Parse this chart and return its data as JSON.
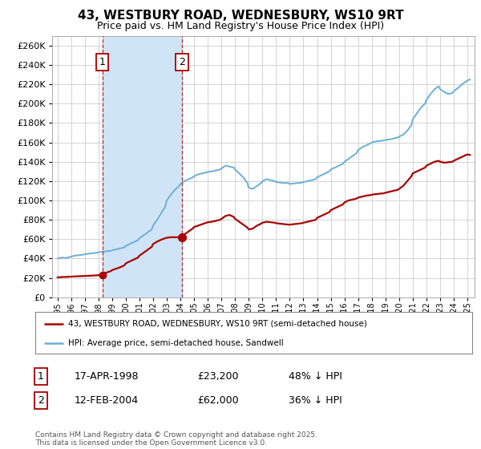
{
  "title": "43, WESTBURY ROAD, WEDNESBURY, WS10 9RT",
  "subtitle": "Price paid vs. HM Land Registry's House Price Index (HPI)",
  "ylabel_ticks": [
    0,
    20000,
    40000,
    60000,
    80000,
    100000,
    120000,
    140000,
    160000,
    180000,
    200000,
    220000,
    240000,
    260000
  ],
  "ylim": [
    0,
    270000
  ],
  "xlim_start": 1994.6,
  "xlim_end": 2025.5,
  "purchase1_date": 1998.29,
  "purchase1_price": 23200,
  "purchase2_date": 2004.11,
  "purchase2_price": 62000,
  "table_row1": [
    "1",
    "17-APR-1998",
    "£23,200",
    "48% ↓ HPI"
  ],
  "table_row2": [
    "2",
    "12-FEB-2004",
    "£62,000",
    "36% ↓ HPI"
  ],
  "legend_line1": "43, WESTBURY ROAD, WEDNESBURY, WS10 9RT (semi-detached house)",
  "legend_line2": "HPI: Average price, semi-detached house, Sandwell",
  "copyright": "Contains HM Land Registry data © Crown copyright and database right 2025.\nThis data is licensed under the Open Government Licence v3.0.",
  "red_color": "#aa0000",
  "blue_color": "#6baed6",
  "shade_color": "#d0e4f7",
  "background_color": "#ffffff",
  "grid_color": "#cccccc",
  "hpi_data": [
    [
      1995.0,
      40000
    ],
    [
      1995.3,
      41000
    ],
    [
      1995.6,
      40500
    ],
    [
      1995.9,
      41500
    ],
    [
      1996.0,
      42000
    ],
    [
      1996.3,
      43000
    ],
    [
      1996.6,
      43500
    ],
    [
      1996.9,
      44000
    ],
    [
      1997.0,
      44500
    ],
    [
      1997.3,
      45000
    ],
    [
      1997.6,
      45500
    ],
    [
      1997.9,
      46000
    ],
    [
      1998.0,
      46500
    ],
    [
      1998.3,
      47000
    ],
    [
      1998.6,
      47500
    ],
    [
      1998.9,
      48000
    ],
    [
      1999.0,
      48500
    ],
    [
      1999.3,
      49500
    ],
    [
      1999.6,
      50500
    ],
    [
      1999.9,
      51500
    ],
    [
      2000.0,
      53000
    ],
    [
      2000.3,
      55000
    ],
    [
      2000.6,
      57000
    ],
    [
      2000.9,
      59000
    ],
    [
      2001.0,
      61000
    ],
    [
      2001.3,
      64000
    ],
    [
      2001.6,
      67000
    ],
    [
      2001.9,
      70000
    ],
    [
      2002.0,
      74000
    ],
    [
      2002.3,
      80000
    ],
    [
      2002.6,
      87000
    ],
    [
      2002.9,
      94000
    ],
    [
      2003.0,
      100000
    ],
    [
      2003.3,
      106000
    ],
    [
      2003.6,
      111000
    ],
    [
      2003.9,
      115000
    ],
    [
      2004.0,
      117000
    ],
    [
      2004.3,
      120000
    ],
    [
      2004.6,
      122000
    ],
    [
      2004.9,
      124000
    ],
    [
      2005.0,
      125000
    ],
    [
      2005.3,
      127000
    ],
    [
      2005.6,
      128000
    ],
    [
      2005.9,
      129000
    ],
    [
      2006.0,
      129500
    ],
    [
      2006.3,
      130000
    ],
    [
      2006.6,
      131000
    ],
    [
      2006.9,
      132000
    ],
    [
      2007.0,
      133000
    ],
    [
      2007.3,
      136000
    ],
    [
      2007.6,
      135000
    ],
    [
      2007.9,
      134000
    ],
    [
      2008.0,
      132000
    ],
    [
      2008.3,
      128000
    ],
    [
      2008.6,
      124000
    ],
    [
      2008.9,
      118000
    ],
    [
      2009.0,
      113000
    ],
    [
      2009.3,
      112000
    ],
    [
      2009.6,
      115000
    ],
    [
      2009.9,
      118000
    ],
    [
      2010.0,
      120000
    ],
    [
      2010.3,
      122000
    ],
    [
      2010.6,
      121000
    ],
    [
      2010.9,
      120000
    ],
    [
      2011.0,
      119000
    ],
    [
      2011.3,
      118500
    ],
    [
      2011.6,
      118000
    ],
    [
      2011.9,
      118000
    ],
    [
      2012.0,
      117000
    ],
    [
      2012.3,
      117500
    ],
    [
      2012.6,
      118000
    ],
    [
      2012.9,
      118500
    ],
    [
      2013.0,
      119000
    ],
    [
      2013.3,
      120000
    ],
    [
      2013.6,
      121000
    ],
    [
      2013.9,
      122000
    ],
    [
      2014.0,
      124000
    ],
    [
      2014.3,
      126000
    ],
    [
      2014.6,
      128000
    ],
    [
      2014.9,
      130000
    ],
    [
      2015.0,
      132000
    ],
    [
      2015.3,
      134000
    ],
    [
      2015.6,
      136000
    ],
    [
      2015.9,
      138000
    ],
    [
      2016.0,
      140000
    ],
    [
      2016.3,
      143000
    ],
    [
      2016.6,
      146000
    ],
    [
      2016.9,
      149000
    ],
    [
      2017.0,
      152000
    ],
    [
      2017.3,
      155000
    ],
    [
      2017.6,
      157000
    ],
    [
      2017.9,
      159000
    ],
    [
      2018.0,
      160000
    ],
    [
      2018.3,
      161000
    ],
    [
      2018.6,
      161500
    ],
    [
      2018.9,
      162000
    ],
    [
      2019.0,
      162500
    ],
    [
      2019.3,
      163000
    ],
    [
      2019.6,
      164000
    ],
    [
      2019.9,
      165000
    ],
    [
      2020.0,
      166000
    ],
    [
      2020.3,
      168000
    ],
    [
      2020.6,
      172000
    ],
    [
      2020.9,
      178000
    ],
    [
      2021.0,
      184000
    ],
    [
      2021.3,
      190000
    ],
    [
      2021.6,
      196000
    ],
    [
      2021.9,
      200000
    ],
    [
      2022.0,
      204000
    ],
    [
      2022.3,
      210000
    ],
    [
      2022.6,
      215000
    ],
    [
      2022.9,
      218000
    ],
    [
      2023.0,
      215000
    ],
    [
      2023.3,
      212000
    ],
    [
      2023.6,
      210000
    ],
    [
      2023.9,
      211000
    ],
    [
      2024.0,
      213000
    ],
    [
      2024.3,
      216000
    ],
    [
      2024.6,
      220000
    ],
    [
      2024.9,
      223000
    ],
    [
      2025.0,
      224000
    ],
    [
      2025.2,
      225000
    ]
  ],
  "red_data": [
    [
      1995.0,
      20500
    ],
    [
      1995.3,
      20800
    ],
    [
      1995.6,
      21000
    ],
    [
      1995.9,
      21200
    ],
    [
      1996.0,
      21300
    ],
    [
      1996.3,
      21500
    ],
    [
      1996.6,
      21700
    ],
    [
      1996.9,
      21900
    ],
    [
      1997.0,
      22000
    ],
    [
      1997.3,
      22200
    ],
    [
      1997.6,
      22400
    ],
    [
      1997.9,
      22600
    ],
    [
      1998.0,
      22800
    ],
    [
      1998.29,
      23200
    ],
    [
      1998.5,
      25000
    ],
    [
      1998.9,
      27000
    ],
    [
      1999.0,
      28000
    ],
    [
      1999.3,
      29500
    ],
    [
      1999.6,
      31000
    ],
    [
      1999.9,
      33000
    ],
    [
      2000.0,
      35000
    ],
    [
      2000.3,
      37000
    ],
    [
      2000.6,
      39000
    ],
    [
      2000.9,
      41000
    ],
    [
      2001.0,
      43000
    ],
    [
      2001.3,
      46000
    ],
    [
      2001.6,
      49000
    ],
    [
      2001.9,
      52000
    ],
    [
      2002.0,
      55000
    ],
    [
      2002.3,
      57500
    ],
    [
      2002.6,
      59500
    ],
    [
      2002.9,
      61000
    ],
    [
      2003.0,
      61500
    ],
    [
      2003.3,
      62000
    ],
    [
      2003.6,
      62000
    ],
    [
      2003.9,
      62000
    ],
    [
      2004.11,
      62000
    ],
    [
      2004.3,
      65000
    ],
    [
      2004.6,
      68000
    ],
    [
      2004.9,
      71000
    ],
    [
      2005.0,
      72500
    ],
    [
      2005.3,
      74000
    ],
    [
      2005.6,
      75500
    ],
    [
      2005.9,
      77000
    ],
    [
      2006.0,
      77500
    ],
    [
      2006.3,
      78000
    ],
    [
      2006.6,
      79000
    ],
    [
      2006.9,
      80000
    ],
    [
      2007.0,
      81000
    ],
    [
      2007.3,
      84000
    ],
    [
      2007.6,
      85000
    ],
    [
      2007.9,
      83000
    ],
    [
      2008.0,
      81000
    ],
    [
      2008.3,
      78000
    ],
    [
      2008.6,
      75000
    ],
    [
      2008.9,
      72000
    ],
    [
      2009.0,
      70000
    ],
    [
      2009.3,
      71000
    ],
    [
      2009.6,
      74000
    ],
    [
      2009.9,
      76000
    ],
    [
      2010.0,
      77000
    ],
    [
      2010.3,
      78000
    ],
    [
      2010.6,
      77500
    ],
    [
      2010.9,
      77000
    ],
    [
      2011.0,
      76500
    ],
    [
      2011.3,
      76000
    ],
    [
      2011.6,
      75500
    ],
    [
      2011.9,
      75000
    ],
    [
      2012.0,
      75000
    ],
    [
      2012.3,
      75500
    ],
    [
      2012.6,
      76000
    ],
    [
      2012.9,
      76500
    ],
    [
      2013.0,
      77000
    ],
    [
      2013.3,
      78000
    ],
    [
      2013.6,
      79000
    ],
    [
      2013.9,
      80000
    ],
    [
      2014.0,
      82000
    ],
    [
      2014.3,
      84000
    ],
    [
      2014.6,
      86000
    ],
    [
      2014.9,
      88000
    ],
    [
      2015.0,
      90000
    ],
    [
      2015.3,
      92000
    ],
    [
      2015.6,
      94000
    ],
    [
      2015.9,
      96000
    ],
    [
      2016.0,
      98000
    ],
    [
      2016.3,
      100000
    ],
    [
      2016.6,
      101000
    ],
    [
      2016.9,
      102000
    ],
    [
      2017.0,
      103000
    ],
    [
      2017.3,
      104000
    ],
    [
      2017.6,
      105000
    ],
    [
      2017.9,
      105500
    ],
    [
      2018.0,
      106000
    ],
    [
      2018.3,
      106500
    ],
    [
      2018.6,
      107000
    ],
    [
      2018.9,
      107500
    ],
    [
      2019.0,
      108000
    ],
    [
      2019.3,
      109000
    ],
    [
      2019.6,
      110000
    ],
    [
      2019.9,
      111000
    ],
    [
      2020.0,
      112000
    ],
    [
      2020.3,
      115000
    ],
    [
      2020.6,
      120000
    ],
    [
      2020.9,
      125000
    ],
    [
      2021.0,
      128000
    ],
    [
      2021.3,
      130000
    ],
    [
      2021.6,
      132000
    ],
    [
      2021.9,
      134000
    ],
    [
      2022.0,
      136000
    ],
    [
      2022.3,
      138000
    ],
    [
      2022.6,
      140000
    ],
    [
      2022.9,
      141000
    ],
    [
      2023.0,
      140000
    ],
    [
      2023.3,
      139000
    ],
    [
      2023.6,
      139500
    ],
    [
      2023.9,
      140000
    ],
    [
      2024.0,
      141000
    ],
    [
      2024.3,
      143000
    ],
    [
      2024.6,
      145000
    ],
    [
      2024.9,
      147000
    ],
    [
      2025.0,
      147500
    ],
    [
      2025.2,
      147000
    ]
  ]
}
